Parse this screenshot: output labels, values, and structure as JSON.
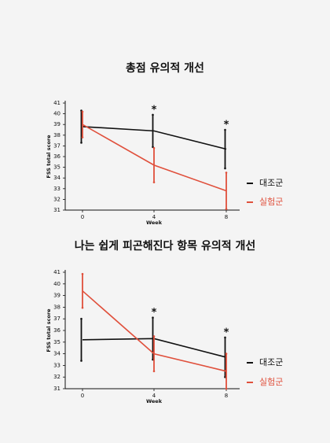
{
  "chart_data": [
    {
      "type": "line",
      "title": "총점 유의적 개선",
      "y_label": "FSS total score",
      "x_label": "Week",
      "categories": [
        "0",
        "4",
        "8"
      ],
      "ylim": [
        31,
        41
      ],
      "yticks": [
        31,
        32,
        33,
        34,
        35,
        36,
        37,
        38,
        39,
        40,
        41
      ],
      "significance": [
        null,
        "*",
        "*"
      ],
      "series": [
        {
          "name": "대조군",
          "color": "#111111",
          "values": [
            38.8,
            38.4,
            36.7
          ],
          "errors": [
            1.5,
            1.5,
            1.8
          ]
        },
        {
          "name": "실험군",
          "color": "#e0503c",
          "values": [
            39.0,
            35.2,
            32.8
          ],
          "errors": [
            1.2,
            1.6,
            1.7
          ]
        }
      ]
    },
    {
      "type": "line",
      "title": "나는 쉽게 피곤해진다 항목 유의적 개선",
      "y_label": "FSS total score",
      "x_label": "Week",
      "categories": [
        "0",
        "4",
        "8"
      ],
      "ylim": [
        31,
        41
      ],
      "yticks": [
        31,
        32,
        33,
        34,
        35,
        36,
        37,
        38,
        39,
        40,
        41
      ],
      "significance": [
        null,
        "*",
        "*"
      ],
      "series": [
        {
          "name": "대조군",
          "color": "#111111",
          "values": [
            35.2,
            35.3,
            33.7
          ],
          "errors": [
            1.8,
            1.8,
            1.7
          ]
        },
        {
          "name": "실험군",
          "color": "#e0503c",
          "values": [
            39.4,
            34.0,
            32.5
          ],
          "errors": [
            1.45,
            1.5,
            1.5
          ]
        }
      ]
    }
  ]
}
